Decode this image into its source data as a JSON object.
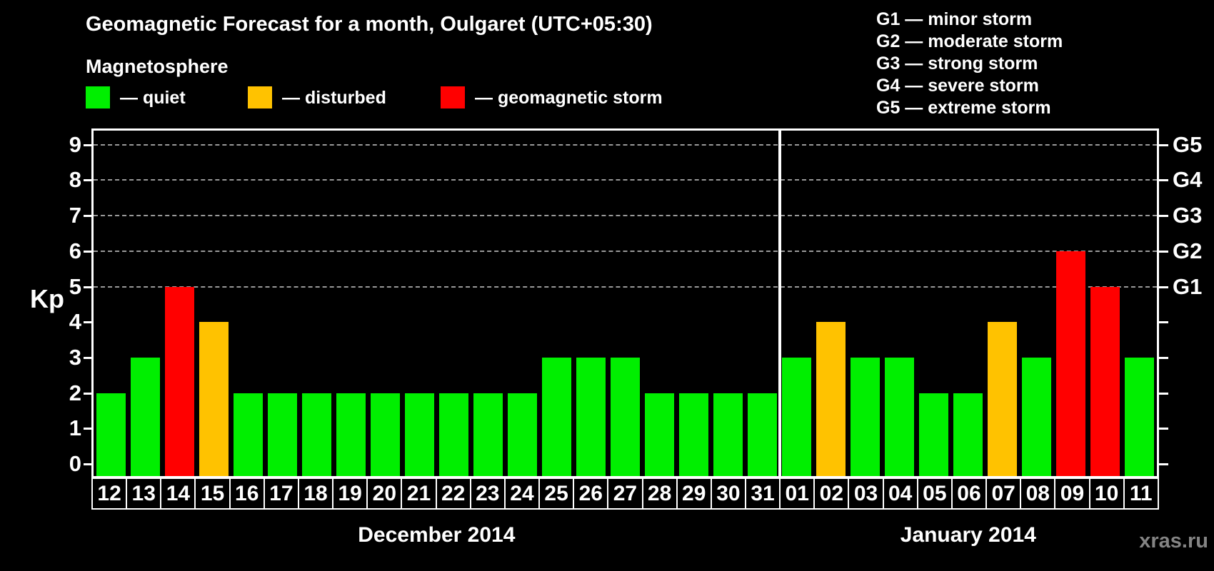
{
  "title": "Geomagnetic Forecast for a month, Oulgaret (UTC+05:30)",
  "subtitle": "Magnetosphere",
  "legend": {
    "items": [
      {
        "status": "quiet",
        "label": "— quiet",
        "color": "#00ef00"
      },
      {
        "status": "disturbed",
        "label": "— disturbed",
        "color": "#ffc200"
      },
      {
        "status": "storm",
        "label": "— geomagnetic storm",
        "color": "#ff0000"
      }
    ]
  },
  "storm_scale_legend": {
    "lines": [
      "G1 — minor storm",
      "G2 — moderate storm",
      "G3 — strong storm",
      "G4 — severe storm",
      "G5 — extreme storm"
    ]
  },
  "watermark": "xras.ru",
  "chart_data": {
    "type": "bar",
    "ylabel": "Kp",
    "ylim": [
      0,
      9.4
    ],
    "yticks": [
      0,
      1,
      2,
      3,
      4,
      5,
      6,
      7,
      8,
      9
    ],
    "gridlines_at": [
      5,
      6,
      7,
      8,
      9
    ],
    "grid_style": "dashed",
    "gridline_color": "#999999",
    "right_axis_labels": [
      {
        "value": 5,
        "label": "G1"
      },
      {
        "value": 6,
        "label": "G2"
      },
      {
        "value": 7,
        "label": "G3"
      },
      {
        "value": 8,
        "label": "G4"
      },
      {
        "value": 9,
        "label": "G5"
      }
    ],
    "status_colors": {
      "quiet": "#00ef00",
      "disturbed": "#ffc200",
      "storm": "#ff0000"
    },
    "months": [
      {
        "label": "December 2014",
        "days": [
          {
            "day": "12",
            "kp": 2,
            "status": "quiet"
          },
          {
            "day": "13",
            "kp": 3,
            "status": "quiet"
          },
          {
            "day": "14",
            "kp": 5,
            "status": "storm"
          },
          {
            "day": "15",
            "kp": 4,
            "status": "disturbed"
          },
          {
            "day": "16",
            "kp": 2,
            "status": "quiet"
          },
          {
            "day": "17",
            "kp": 2,
            "status": "quiet"
          },
          {
            "day": "18",
            "kp": 2,
            "status": "quiet"
          },
          {
            "day": "19",
            "kp": 2,
            "status": "quiet"
          },
          {
            "day": "20",
            "kp": 2,
            "status": "quiet"
          },
          {
            "day": "21",
            "kp": 2,
            "status": "quiet"
          },
          {
            "day": "22",
            "kp": 2,
            "status": "quiet"
          },
          {
            "day": "23",
            "kp": 2,
            "status": "quiet"
          },
          {
            "day": "24",
            "kp": 2,
            "status": "quiet"
          },
          {
            "day": "25",
            "kp": 3,
            "status": "quiet"
          },
          {
            "day": "26",
            "kp": 3,
            "status": "quiet"
          },
          {
            "day": "27",
            "kp": 3,
            "status": "quiet"
          },
          {
            "day": "28",
            "kp": 2,
            "status": "quiet"
          },
          {
            "day": "29",
            "kp": 2,
            "status": "quiet"
          },
          {
            "day": "30",
            "kp": 2,
            "status": "quiet"
          },
          {
            "day": "31",
            "kp": 2,
            "status": "quiet"
          }
        ]
      },
      {
        "label": "January 2014",
        "days": [
          {
            "day": "01",
            "kp": 3,
            "status": "quiet"
          },
          {
            "day": "02",
            "kp": 4,
            "status": "disturbed"
          },
          {
            "day": "03",
            "kp": 3,
            "status": "quiet"
          },
          {
            "day": "04",
            "kp": 3,
            "status": "quiet"
          },
          {
            "day": "05",
            "kp": 2,
            "status": "quiet"
          },
          {
            "day": "06",
            "kp": 2,
            "status": "quiet"
          },
          {
            "day": "07",
            "kp": 4,
            "status": "disturbed"
          },
          {
            "day": "08",
            "kp": 3,
            "status": "quiet"
          },
          {
            "day": "09",
            "kp": 6,
            "status": "storm"
          },
          {
            "day": "10",
            "kp": 5,
            "status": "storm"
          },
          {
            "day": "11",
            "kp": 3,
            "status": "quiet"
          }
        ]
      }
    ]
  }
}
